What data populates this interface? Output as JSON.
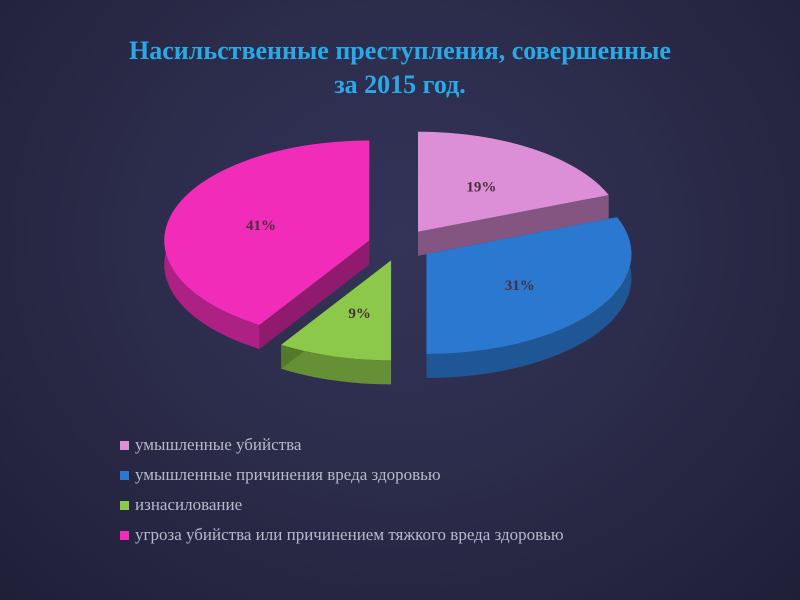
{
  "title_line1": "Насильственные преступления, совершенные",
  "title_line2": "за 2015 год.",
  "chart_data": {
    "type": "pie",
    "title": "Насильственные преступления, совершенные за 2015 год.",
    "legend_position": "bottom",
    "slices": [
      {
        "name": "умышленные убийства",
        "value": 19,
        "label": "19%",
        "color": "#dc8ed6"
      },
      {
        "name": "умышленные причинения вреда здоровью",
        "value": 31,
        "label": "31%",
        "color": "#2a78d0"
      },
      {
        "name": "изнасилование",
        "value": 9,
        "label": "9%",
        "color": "#8cc84a"
      },
      {
        "name": "угроза убийства или причинением тяжкого вреда здоровью",
        "value": 41,
        "label": "41%",
        "color": "#f02cb8"
      }
    ]
  },
  "legend": [
    {
      "label": "умышленные убийства",
      "color": "#dc8ed6"
    },
    {
      "label": "умышленные причинения вреда здоровью",
      "color": "#2a78d0"
    },
    {
      "label": "изнасилование",
      "color": "#8cc84a"
    },
    {
      "label": "угроза убийства или причинением тяжкого вреда здоровью",
      "color": "#f02cb8"
    }
  ]
}
